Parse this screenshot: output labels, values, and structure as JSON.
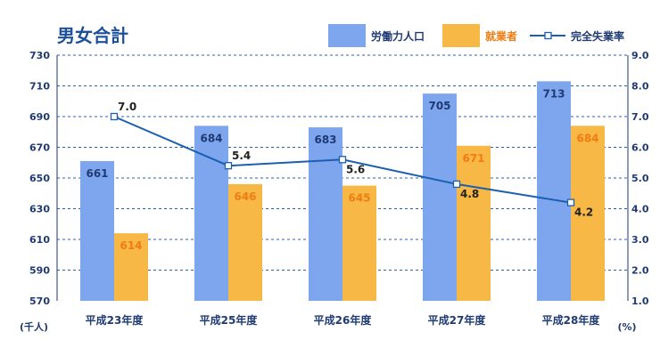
{
  "chart_data": {
    "type": "bar",
    "title": "男女合計",
    "categories": [
      "平成23年度",
      "平成25年度",
      "平成26年度",
      "平成27年度",
      "平成28年度"
    ],
    "series": [
      {
        "name": "労働力人口",
        "type": "bar",
        "axis": "left",
        "color": "#7ea6ee",
        "label_color": "#1f3a73",
        "values": [
          661,
          684,
          683,
          705,
          713
        ]
      },
      {
        "name": "就業者",
        "type": "bar",
        "axis": "left",
        "color": "#f7b845",
        "label_color": "#f07c12",
        "values": [
          614,
          646,
          645,
          671,
          684
        ]
      },
      {
        "name": "完全失業率",
        "type": "line",
        "axis": "right",
        "color": "#1c5fb0",
        "values": [
          7.0,
          5.4,
          5.6,
          4.8,
          4.2
        ]
      }
    ],
    "y_left": {
      "unit": "(千人)",
      "ylim": [
        570,
        730
      ],
      "ticks": [
        570,
        590,
        610,
        630,
        650,
        670,
        690,
        710,
        730
      ]
    },
    "y_right": {
      "unit": "(%)",
      "ylim": [
        1.0,
        9.0
      ],
      "ticks": [
        "1.0",
        "2.0",
        "3.0",
        "4.0",
        "5.0",
        "6.0",
        "7.0",
        "8.0",
        "9.0"
      ]
    },
    "grid": true,
    "grid_style": "dashed",
    "legend_position": "top-right"
  }
}
